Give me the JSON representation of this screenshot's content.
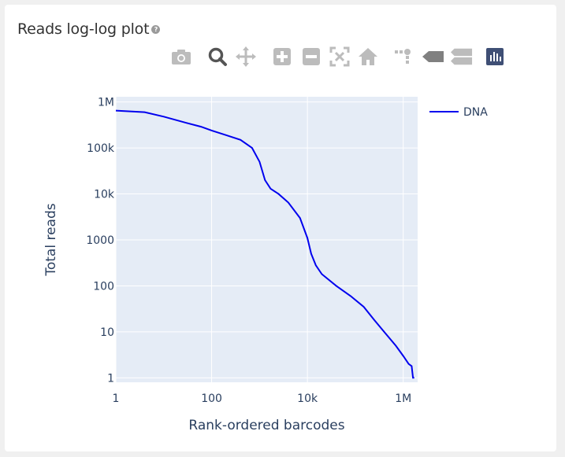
{
  "card": {
    "title": "Reads log-log plot",
    "help_icon": "question-circle-icon"
  },
  "modebar": {
    "icons": [
      "camera-icon",
      "zoom-icon",
      "pan-icon",
      "zoom-in-icon",
      "zoom-out-icon",
      "autoscale-icon",
      "reset-axes-icon",
      "spike-lines-icon",
      "hover-closest-icon",
      "hover-compare-icon",
      "plotly-logo-icon"
    ]
  },
  "chart_data": {
    "type": "line",
    "xlabel": "Rank-ordered barcodes",
    "ylabel": "Total reads",
    "xscale": "log",
    "yscale": "log",
    "xlim": [
      1,
      2000000
    ],
    "ylim": [
      0.8,
      1300000
    ],
    "x_ticks": [
      {
        "value": 1,
        "label": "1"
      },
      {
        "value": 100,
        "label": "100"
      },
      {
        "value": 10000,
        "label": "10k"
      },
      {
        "value": 1000000,
        "label": "1M"
      }
    ],
    "y_ticks": [
      {
        "value": 1,
        "label": "1"
      },
      {
        "value": 10,
        "label": "10"
      },
      {
        "value": 100,
        "label": "100"
      },
      {
        "value": 1000,
        "label": "1000"
      },
      {
        "value": 10000,
        "label": "10k"
      },
      {
        "value": 100000,
        "label": "100k"
      },
      {
        "value": 1000000,
        "label": "1M"
      }
    ],
    "grid": true,
    "legend_position": "right",
    "colors": {
      "plot_bg": "#e5ecf6",
      "line": "#0000ee",
      "text": "#2a3f5f"
    },
    "series": [
      {
        "name": "DNA",
        "x": [
          1,
          4,
          10,
          30,
          60,
          100,
          200,
          400,
          700,
          1000,
          1300,
          1700,
          2500,
          4000,
          7000,
          10000,
          12000,
          15000,
          20000,
          40000,
          80000,
          150000,
          250000,
          400000,
          700000,
          1000000,
          1300000,
          1500000,
          1600000,
          1700000
        ],
        "y": [
          650000,
          600000,
          480000,
          350000,
          290000,
          240000,
          190000,
          150000,
          100000,
          50000,
          20000,
          13000,
          10000,
          6500,
          3000,
          1100,
          500,
          280,
          180,
          100,
          60,
          35,
          18,
          10,
          5,
          3,
          2,
          1.8,
          1.0,
          1.0
        ]
      }
    ]
  }
}
